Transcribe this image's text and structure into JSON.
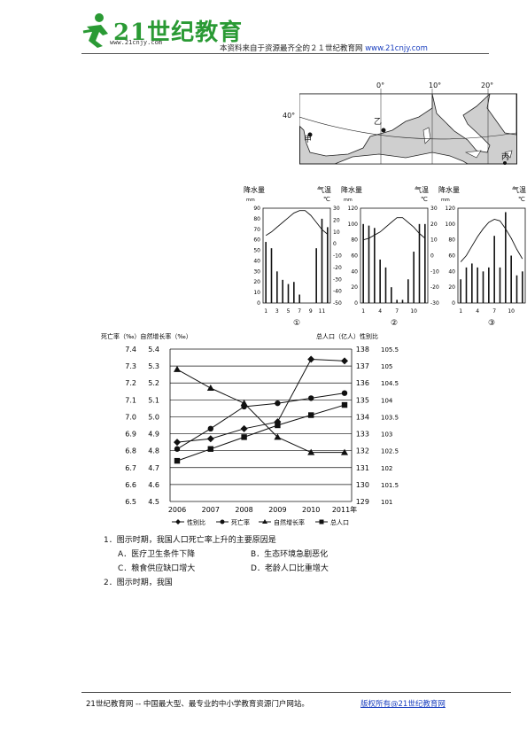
{
  "header": {
    "logo_text": "21世纪教育",
    "logo_sub": "www.21cnjy.com",
    "notice": "本资料来自于资源最齐全的２１世纪教育网",
    "notice_link": "www.21cnjy.com"
  },
  "map": {
    "lon_labels": [
      "0°",
      "10°",
      "20°"
    ],
    "lat_label": "40°",
    "places": [
      "甲",
      "乙",
      "丙"
    ]
  },
  "climate_charts": [
    {
      "left_axis": "降水量",
      "left_unit": "mm",
      "right_axis": "气温",
      "right_unit": "℃",
      "left_ticks": [
        "90",
        "80",
        "70",
        "60",
        "50",
        "40",
        "30",
        "20",
        "10",
        "0"
      ],
      "right_ticks": [
        "30",
        "20",
        "10",
        "0",
        "-10",
        "-20",
        "-30",
        "-40",
        "-50"
      ],
      "x_ticks": [
        "1",
        "3",
        "5",
        "7",
        "9",
        "11"
      ],
      "label": "①",
      "precip": [
        58,
        52,
        30,
        22,
        18,
        20,
        8,
        0,
        0,
        52,
        80,
        72
      ],
      "temp": [
        7,
        10,
        14,
        18,
        22,
        26,
        28,
        28,
        24,
        18,
        12,
        8
      ]
    },
    {
      "left_axis": "降水量",
      "left_unit": "mm",
      "right_axis": "气温",
      "right_unit": "℃",
      "left_ticks": [
        "120",
        "100",
        "80",
        "60",
        "40",
        "20",
        "0"
      ],
      "right_ticks": [
        "30",
        "20",
        "10",
        "0",
        "-10",
        "-20",
        "-30"
      ],
      "x_ticks": [
        "1",
        "4",
        "7",
        "10"
      ],
      "label": "②",
      "precip": [
        100,
        98,
        95,
        55,
        45,
        20,
        4,
        4,
        30,
        65,
        100,
        100
      ],
      "temp": [
        10,
        11,
        13,
        15,
        18,
        21,
        24,
        24,
        21,
        18,
        14,
        11
      ]
    },
    {
      "left_axis": "降水量",
      "left_unit": "mm",
      "right_axis": "气温",
      "right_unit": "℃",
      "left_ticks": [
        "120",
        "100",
        "80",
        "60",
        "40",
        "20",
        "0"
      ],
      "right_ticks": [
        "30",
        "20",
        "10",
        "0",
        "-10",
        "-20",
        "-30"
      ],
      "x_ticks": [
        "1",
        "4",
        "7",
        "10"
      ],
      "label": "③",
      "precip": [
        30,
        45,
        50,
        45,
        40,
        45,
        85,
        45,
        115,
        60,
        35,
        40
      ],
      "temp": [
        -4,
        0,
        6,
        12,
        17,
        21,
        23,
        22,
        17,
        11,
        4,
        -2
      ]
    }
  ],
  "chart_data": {
    "type": "line",
    "categories": [
      "2006",
      "2007",
      "2008",
      "2009",
      "2010",
      "2011年"
    ],
    "series": [
      {
        "name": "性别比",
        "values": [
          4.85,
          4.87,
          4.93,
          4.97,
          5.34,
          5.33
        ],
        "marker": "diamond"
      },
      {
        "name": "死亡率",
        "values": [
          6.81,
          6.93,
          7.06,
          7.08,
          7.11,
          7.14
        ],
        "marker": "circle"
      },
      {
        "name": "自然增长率",
        "values": [
          5.28,
          5.17,
          5.08,
          4.88,
          4.79,
          4.79
        ],
        "marker": "triangle"
      },
      {
        "name": "总人口",
        "values": [
          131.4,
          132.1,
          132.8,
          133.5,
          134.1,
          134.7
        ],
        "marker": "square"
      }
    ],
    "ytick_a": [
      "7.4",
      "7.3",
      "7.2",
      "7.1",
      "7.0",
      "6.9",
      "6.8",
      "6.7",
      "6.6",
      "6.5"
    ],
    "ytick_b": [
      "5.4",
      "5.3",
      "5.2",
      "5.1",
      "5.0",
      "4.9",
      "4.8",
      "4.7",
      "4.6",
      "4.5"
    ],
    "ytick_c": [
      "138",
      "137",
      "136",
      "135",
      "134",
      "133",
      "132",
      "131",
      "130",
      "129"
    ],
    "ytick_d": [
      "105.5",
      "105",
      "104.5",
      "104",
      "103.5",
      "103",
      "102.5",
      "102",
      "101.5",
      "101"
    ],
    "top_left_label": "死亡率（‰）自然增长率（‰）",
    "top_right_label": "总人口（亿人）性别比",
    "ylim_b": [
      4.5,
      5.4
    ],
    "ylim_a": [
      6.5,
      7.4
    ],
    "ylim_c": [
      129,
      138
    ]
  },
  "questions": [
    {
      "num": "1．",
      "text": "图示时期，我国人口死亡率上升的主要原因是"
    },
    {
      "num": "2．",
      "text": "图示时期，我国"
    }
  ],
  "options": {
    "A": "A．医疗卫生条件下降",
    "B": "B．生态环境急剧恶化",
    "C": "C．粮食供应缺口增大",
    "D": "D．老龄人口比重增大"
  },
  "footer": {
    "left": "21世纪教育网 -- 中国最大型、最专业的中小学教育资源门户网站。",
    "right": "版权所有@21世纪教育网"
  }
}
